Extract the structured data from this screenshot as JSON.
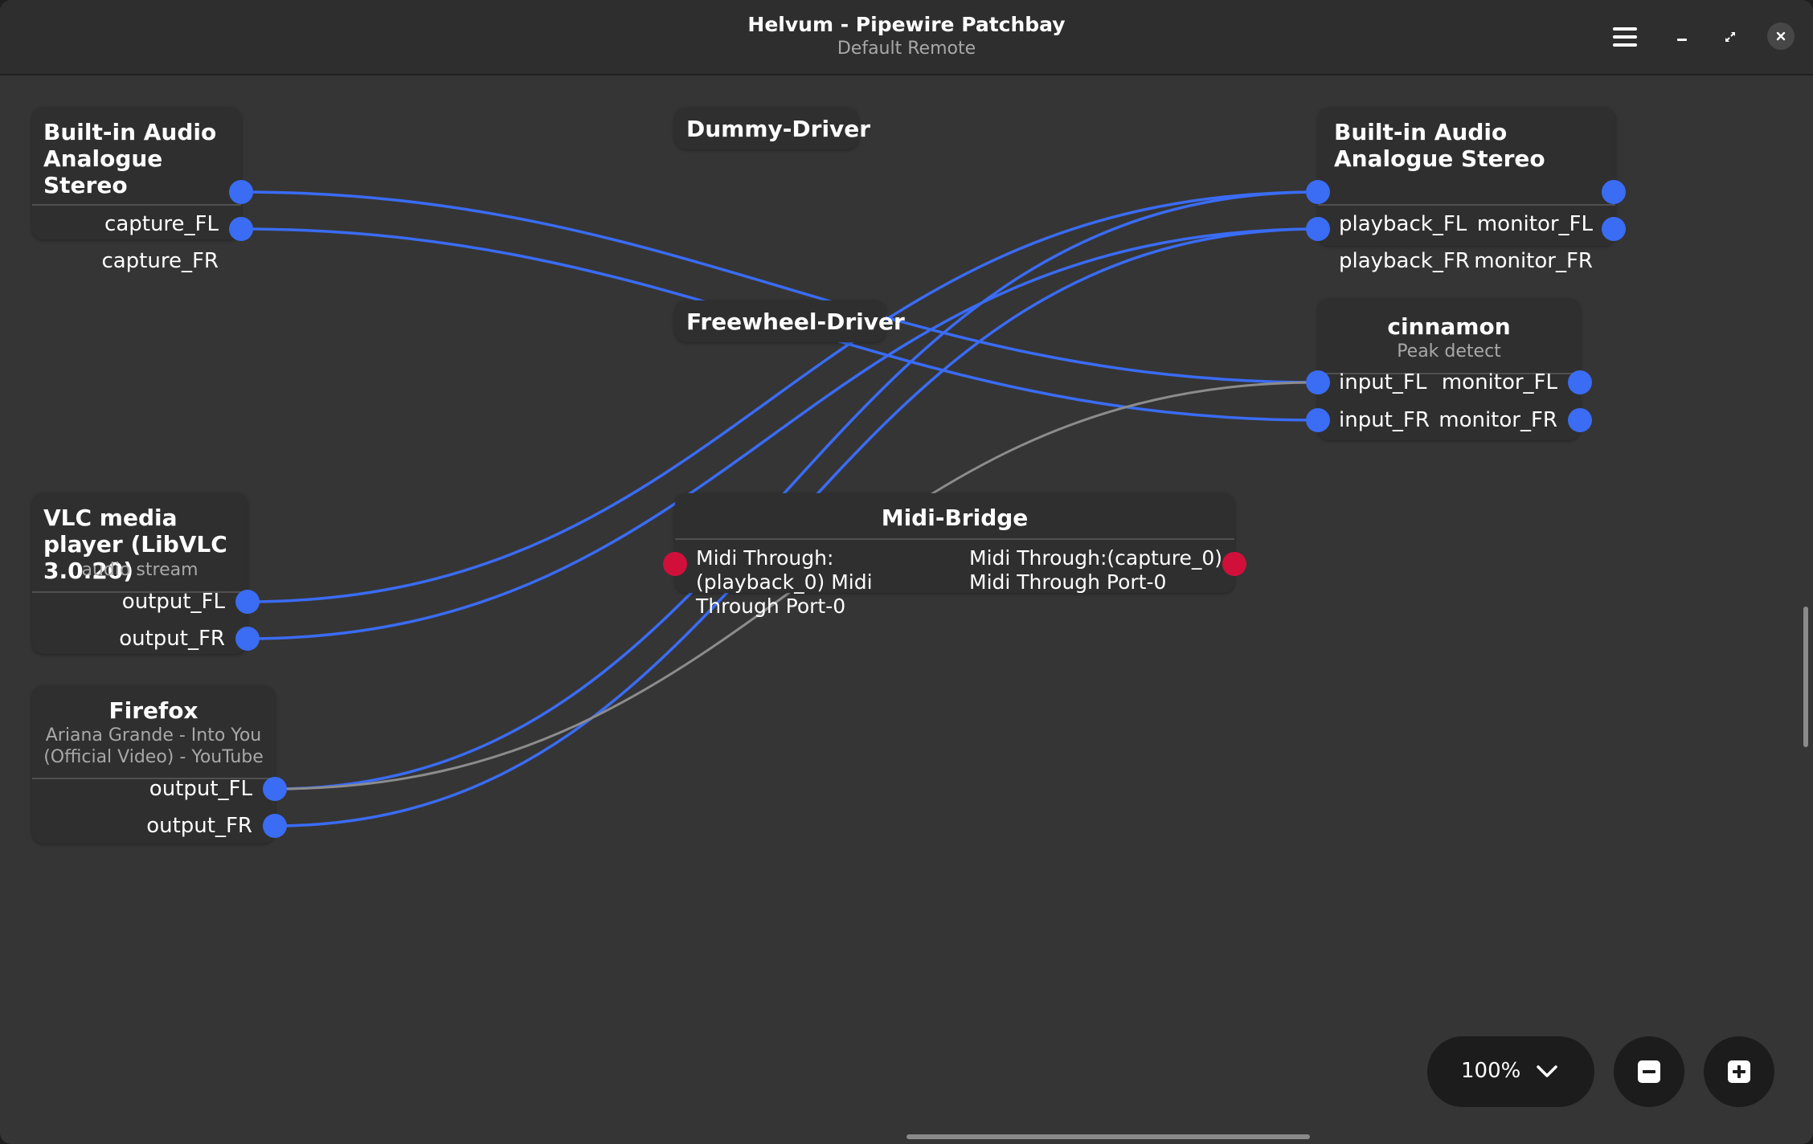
{
  "window": {
    "title": "Helvum - Pipewire Patchbay",
    "subtitle": "Default Remote",
    "controls": {
      "menu": "hamburger-icon",
      "minimize": "minimize-icon",
      "maximize": "maximize-icon",
      "close": "close-icon"
    }
  },
  "colors": {
    "audio_link": "#3a6cf4",
    "midi_port": "#d0103a",
    "other_link": "#8c8c8c",
    "background": "#353535"
  },
  "nodes": {
    "builtin_capture": {
      "title": "Built-in Audio Analogue Stereo",
      "ports": {
        "capture_fl": "capture_FL",
        "capture_fr": "capture_FR"
      }
    },
    "dummy_driver": {
      "title": "Dummy-Driver"
    },
    "freewheel_driver": {
      "title": "Freewheel-Driver"
    },
    "builtin_playback": {
      "title": "Built-in Audio Analogue Stereo",
      "ports": {
        "playback_fl": "playback_FL",
        "playback_fr": "playback_FR",
        "monitor_fl": "monitor_FL",
        "monitor_fr": "monitor_FR"
      }
    },
    "cinnamon": {
      "title": "cinnamon",
      "subtitle": "Peak detect",
      "ports": {
        "input_fl": "input_FL",
        "input_fr": "input_FR",
        "monitor_fl": "monitor_FL",
        "monitor_fr": "monitor_FR"
      }
    },
    "vlc": {
      "title": "VLC media player (LibVLC 3.0.20)",
      "subtitle": "audio stream",
      "ports": {
        "output_fl": "output_FL",
        "output_fr": "output_FR"
      }
    },
    "firefox": {
      "title": "Firefox",
      "subtitle": "Ariana Grande - Into You (Official Video) - YouTube",
      "ports": {
        "output_fl": "output_FL",
        "output_fr": "output_FR"
      }
    },
    "midi_bridge": {
      "title": "Midi-Bridge",
      "ports": {
        "input": "Midi Through:(playback_0) Midi Through Port-0",
        "output": "Midi Through:(capture_0) Midi Through Port-0"
      }
    }
  },
  "links": [
    {
      "from": "Built-in Audio Analogue Stereo:capture_FL",
      "to": "cinnamon:input_FL",
      "type": "audio"
    },
    {
      "from": "Built-in Audio Analogue Stereo:capture_FR",
      "to": "cinnamon:input_FR",
      "type": "audio"
    },
    {
      "from": "VLC media player:output_FL",
      "to": "Built-in Audio Analogue Stereo:playback_FL",
      "type": "audio"
    },
    {
      "from": "VLC media player:output_FR",
      "to": "Built-in Audio Analogue Stereo:playback_FR",
      "type": "audio"
    },
    {
      "from": "Firefox:output_FL",
      "to": "Built-in Audio Analogue Stereo:playback_FL",
      "type": "audio"
    },
    {
      "from": "Firefox:output_FR",
      "to": "Built-in Audio Analogue Stereo:playback_FR",
      "type": "audio"
    },
    {
      "from": "Firefox:output_FL",
      "to": "cinnamon:input_FL",
      "type": "other"
    }
  ],
  "zoom": {
    "level": "100%",
    "zoom_out": "zoom-out-icon",
    "zoom_in": "zoom-in-icon"
  }
}
